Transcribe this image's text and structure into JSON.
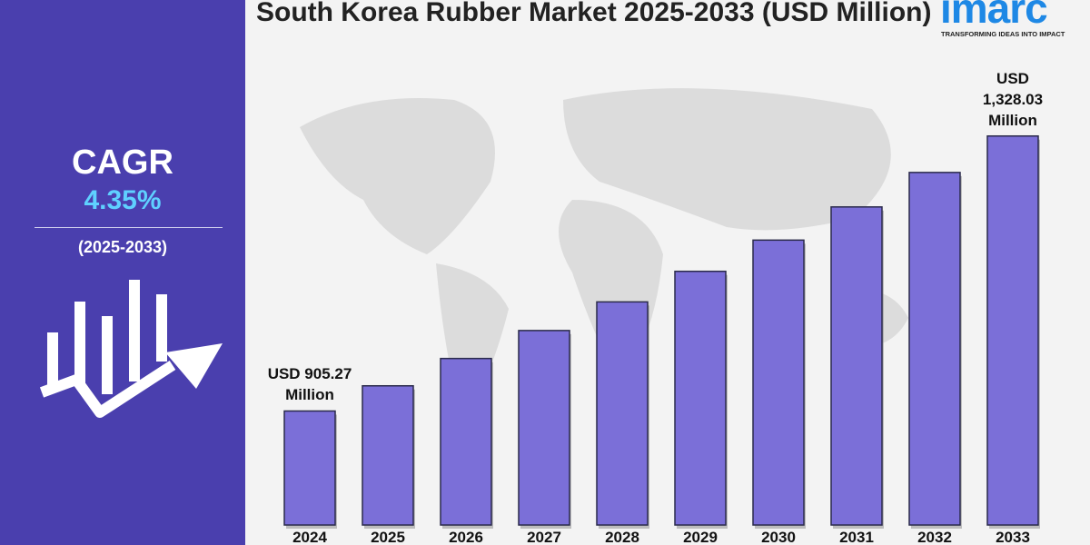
{
  "chart_data": {
    "type": "bar",
    "title": "South Korea Rubber Market 2025-2033 (USD Million)",
    "categories": [
      "2024",
      "2025",
      "2026",
      "2027",
      "2028",
      "2029",
      "2030",
      "2031",
      "2032",
      "2033"
    ],
    "values": [
      905.27,
      944,
      986,
      1029,
      1073,
      1120,
      1168,
      1219,
      1272,
      1328.03
    ],
    "value_labels": [
      "USD 905.27 Million",
      null,
      null,
      null,
      null,
      null,
      null,
      null,
      null,
      "USD 1,328.03 Million"
    ],
    "color": "#7b6fd8",
    "ylim": [
      730,
      1350
    ]
  },
  "sidebar": {
    "label": "CAGR",
    "value": "4.35%",
    "period": "(2025-2033)"
  },
  "logo": {
    "name": "imarc",
    "tagline": "TRANSFORMING IDEAS INTO IMPACT"
  }
}
